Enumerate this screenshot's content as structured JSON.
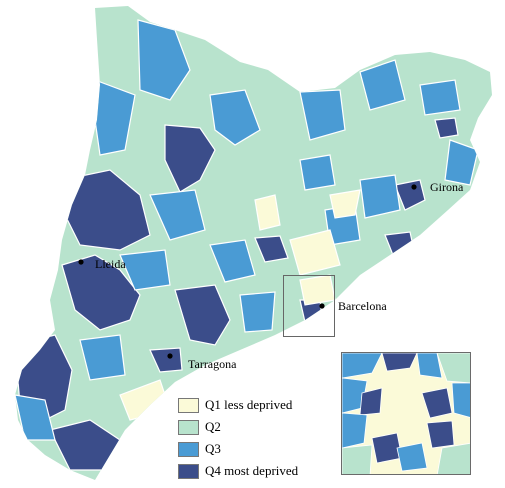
{
  "colors": {
    "q1": "#fbfad8",
    "q2": "#b8e3cd",
    "q3": "#4a9bd4",
    "q4": "#3b4d8a",
    "border": "#ffffff"
  },
  "cities": {
    "girona": "Girona",
    "lleida": "Lleida",
    "barcelona": "Barcelona",
    "tarragona": "Tarragona"
  },
  "legend": [
    {
      "label": "Q1 less deprived",
      "color": "#fbfad8"
    },
    {
      "label": "Q2",
      "color": "#b8e3cd"
    },
    {
      "label": "Q3",
      "color": "#4a9bd4"
    },
    {
      "label": "Q4 most deprived",
      "color": "#3b4d8a"
    }
  ]
}
